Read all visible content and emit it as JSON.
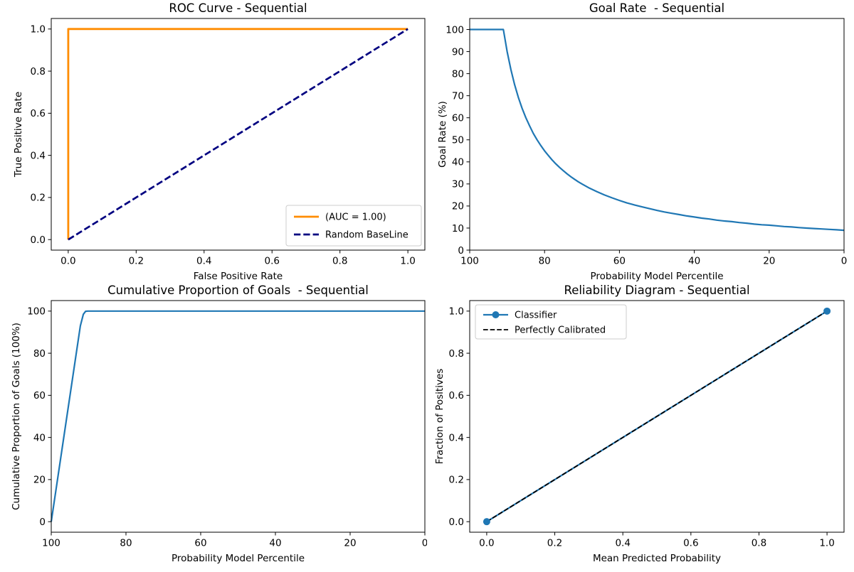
{
  "figure": {
    "background": "#ffffff",
    "frame_color": "#000000",
    "legend_border_color": "#cccccc"
  },
  "chart_data": [
    {
      "id": "roc",
      "type": "line",
      "title": "ROC Curve - Sequential",
      "xlabel": "False Positive Rate",
      "ylabel": "True Positive Rate",
      "xlim": [
        -0.05,
        1.05
      ],
      "ylim": [
        -0.05,
        1.05
      ],
      "xticks": {
        "values": [
          0,
          0.2,
          0.4,
          0.6,
          0.8,
          1.0
        ],
        "labels": [
          "0.0",
          "0.2",
          "0.4",
          "0.6",
          "0.8",
          "1.0"
        ]
      },
      "yticks": {
        "values": [
          0,
          0.2,
          0.4,
          0.6,
          0.8,
          1.0
        ],
        "labels": [
          "0.0",
          "0.2",
          "0.4",
          "0.6",
          "0.8",
          "1.0"
        ]
      },
      "series": [
        {
          "name": "(AUC = 1.00)",
          "color": "#ff8c00",
          "width": 2.8,
          "points": [
            [
              0,
              0
            ],
            [
              0,
              1
            ],
            [
              1,
              1
            ]
          ]
        },
        {
          "name": "Random BaseLine",
          "color": "#000080",
          "width": 2.7,
          "dash": "9.3,4",
          "points": [
            [
              0,
              0
            ],
            [
              1,
              1
            ]
          ]
        }
      ],
      "legend": {
        "position": "lower right",
        "entries": [
          {
            "label": "(AUC = 1.00)",
            "color": "#ff8c00",
            "width": 2.8
          },
          {
            "label": "Random BaseLine",
            "color": "#000080",
            "width": 2.7,
            "dash": "9.3,4"
          }
        ]
      }
    },
    {
      "id": "goal_rate",
      "type": "line",
      "title": "Goal Rate  - Sequential",
      "xlabel": "Probability Model Percentile",
      "ylabel": "Goal Rate (%)",
      "xlim": [
        100,
        0
      ],
      "ylim": [
        0,
        105
      ],
      "xticks": {
        "values": [
          100,
          80,
          60,
          40,
          20,
          0
        ],
        "labels": [
          "100",
          "80",
          "60",
          "40",
          "20",
          "0"
        ]
      },
      "yticks": {
        "values": [
          0,
          10,
          20,
          30,
          40,
          50,
          60,
          70,
          80,
          90,
          100
        ],
        "labels": [
          "0",
          "10",
          "20",
          "30",
          "40",
          "50",
          "60",
          "70",
          "80",
          "90",
          "100"
        ]
      },
      "series": [
        {
          "name": "Goal Rate",
          "color": "#1f77b4",
          "width": 2.2,
          "points": [
            [
              100,
              100
            ],
            [
              91,
              100
            ],
            [
              90,
              90
            ],
            [
              89,
              81.8
            ],
            [
              88,
              75
            ],
            [
              87,
              69.2
            ],
            [
              86,
              64.3
            ],
            [
              85,
              60
            ],
            [
              84,
              56.3
            ],
            [
              83,
              52.9
            ],
            [
              82,
              50
            ],
            [
              81,
              47.4
            ],
            [
              80,
              45
            ],
            [
              79,
              42.9
            ],
            [
              78,
              40.9
            ],
            [
              77,
              39.1
            ],
            [
              76,
              37.5
            ],
            [
              75,
              36
            ],
            [
              74,
              34.6
            ],
            [
              73,
              33.3
            ],
            [
              72,
              32.1
            ],
            [
              71,
              31
            ],
            [
              70,
              30
            ],
            [
              68,
              28.1
            ],
            [
              66,
              26.5
            ],
            [
              64,
              25
            ],
            [
              62,
              23.7
            ],
            [
              60,
              22.5
            ],
            [
              58,
              21.4
            ],
            [
              56,
              20.5
            ],
            [
              54,
              19.6
            ],
            [
              52,
              18.8
            ],
            [
              50,
              18
            ],
            [
              48,
              17.3
            ],
            [
              46,
              16.7
            ],
            [
              44,
              16.1
            ],
            [
              42,
              15.5
            ],
            [
              40,
              15
            ],
            [
              38,
              14.5
            ],
            [
              36,
              14.1
            ],
            [
              34,
              13.6
            ],
            [
              32,
              13.2
            ],
            [
              30,
              12.9
            ],
            [
              28,
              12.5
            ],
            [
              26,
              12.2
            ],
            [
              24,
              11.8
            ],
            [
              22,
              11.5
            ],
            [
              20,
              11.3
            ],
            [
              18,
              11
            ],
            [
              16,
              10.7
            ],
            [
              14,
              10.5
            ],
            [
              12,
              10.2
            ],
            [
              10,
              10
            ],
            [
              8,
              9.8
            ],
            [
              6,
              9.6
            ],
            [
              4,
              9.4
            ],
            [
              2,
              9.2
            ],
            [
              0,
              9
            ]
          ]
        }
      ]
    },
    {
      "id": "cumulative",
      "type": "line",
      "title": "Cumulative Proportion of Goals  - Sequential",
      "xlabel": "Probability Model Percentile",
      "ylabel": "Cumulative Proportion of Goals (100%)",
      "xlim": [
        100,
        0
      ],
      "ylim": [
        -5,
        105
      ],
      "xticks": {
        "values": [
          100,
          80,
          60,
          40,
          20,
          0
        ],
        "labels": [
          "100",
          "80",
          "60",
          "40",
          "20",
          "0"
        ]
      },
      "yticks": {
        "values": [
          0,
          20,
          40,
          60,
          80,
          100
        ],
        "labels": [
          "0",
          "20",
          "40",
          "60",
          "80",
          "100"
        ]
      },
      "series": [
        {
          "name": "Cumulative Proportion",
          "color": "#1f77b4",
          "width": 2.2,
          "points": [
            [
              100,
              0
            ],
            [
              92.2,
              93
            ],
            [
              91.4,
              98.5
            ],
            [
              90.8,
              99.9
            ],
            [
              90.2,
              100
            ],
            [
              0,
              100
            ]
          ]
        }
      ]
    },
    {
      "id": "reliability",
      "type": "line",
      "title": "Reliability Diagram - Sequential",
      "xlabel": "Mean Predicted Probability",
      "ylabel": "Fraction of Positives",
      "xlim": [
        -0.05,
        1.05
      ],
      "ylim": [
        -0.05,
        1.05
      ],
      "xticks": {
        "values": [
          0,
          0.2,
          0.4,
          0.6,
          0.8,
          1.0
        ],
        "labels": [
          "0.0",
          "0.2",
          "0.4",
          "0.6",
          "0.8",
          "1.0"
        ]
      },
      "yticks": {
        "values": [
          0,
          0.2,
          0.4,
          0.6,
          0.8,
          1.0
        ],
        "labels": [
          "0.0",
          "0.2",
          "0.4",
          "0.6",
          "0.8",
          "1.0"
        ]
      },
      "series": [
        {
          "name": "Classifier",
          "color": "#1f77b4",
          "width": 2.2,
          "marker": true,
          "points": [
            [
              0,
              0
            ],
            [
              1,
              1
            ]
          ]
        },
        {
          "name": "Perfectly Calibrated",
          "color": "#000000",
          "width": 1.8,
          "dash": "6.7,2.9",
          "points": [
            [
              0,
              0
            ],
            [
              1,
              1
            ]
          ]
        }
      ],
      "legend": {
        "position": "upper left",
        "entries": [
          {
            "label": "Classifier",
            "color": "#1f77b4",
            "width": 2.2,
            "marker": true
          },
          {
            "label": "Perfectly Calibrated",
            "color": "#000000",
            "width": 1.8,
            "dash": "6.7,2.9"
          }
        ]
      }
    }
  ]
}
